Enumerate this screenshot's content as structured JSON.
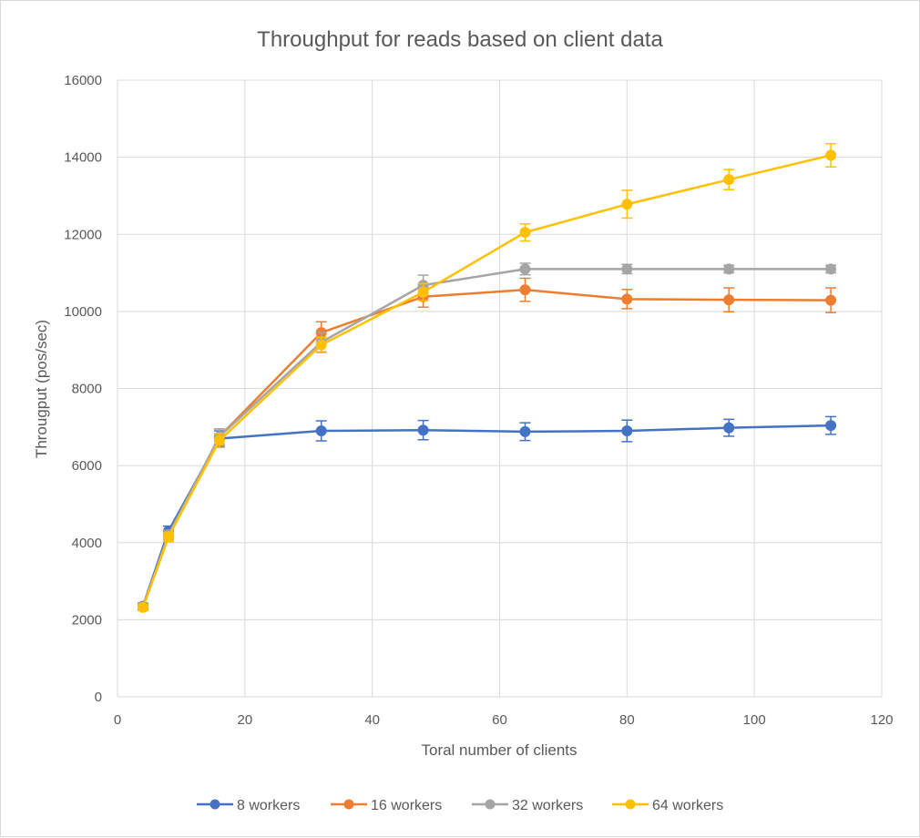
{
  "chart_data": {
    "type": "scatter",
    "title": "Throughput for reads based on client data",
    "xlabel": "Toral number of clients",
    "ylabel": "Througput (pos/sec)",
    "xlim": [
      0,
      120
    ],
    "ylim": [
      0,
      16000
    ],
    "x_ticks": [
      0,
      20,
      40,
      60,
      80,
      100,
      120
    ],
    "y_ticks": [
      0,
      2000,
      4000,
      6000,
      8000,
      10000,
      12000,
      14000,
      16000
    ],
    "grid": true,
    "legend_position": "bottom",
    "error_bars": true,
    "series": [
      {
        "name": "8 workers",
        "color": "#4472c4",
        "x": [
          4,
          8,
          16,
          32,
          48,
          64,
          80,
          96,
          112
        ],
        "y": [
          2350,
          4300,
          6700,
          6900,
          6920,
          6880,
          6900,
          6980,
          7040
        ],
        "err": [
          80,
          130,
          200,
          260,
          250,
          230,
          280,
          220,
          230
        ]
      },
      {
        "name": "16 workers",
        "color": "#ed7d31",
        "x": [
          4,
          8,
          16,
          32,
          48,
          64,
          80,
          96,
          112
        ],
        "y": [
          2330,
          4150,
          6750,
          9450,
          10380,
          10560,
          10320,
          10300,
          10290
        ],
        "err": [
          80,
          120,
          200,
          280,
          270,
          300,
          250,
          310,
          320
        ]
      },
      {
        "name": "32 workers",
        "color": "#a5a5a5",
        "x": [
          4,
          8,
          16,
          32,
          48,
          64,
          80,
          96,
          112
        ],
        "y": [
          2330,
          4200,
          6750,
          9200,
          10680,
          11100,
          11100,
          11100,
          11100
        ],
        "err": [
          80,
          120,
          200,
          250,
          260,
          150,
          120,
          100,
          100
        ]
      },
      {
        "name": "64 workers",
        "color": "#ffc000",
        "x": [
          4,
          8,
          16,
          32,
          48,
          64,
          80,
          96,
          112
        ],
        "y": [
          2320,
          4150,
          6650,
          9130,
          10500,
          12050,
          12780,
          13420,
          14050
        ],
        "err": [
          80,
          120,
          180,
          200,
          220,
          220,
          360,
          260,
          300
        ]
      }
    ]
  }
}
